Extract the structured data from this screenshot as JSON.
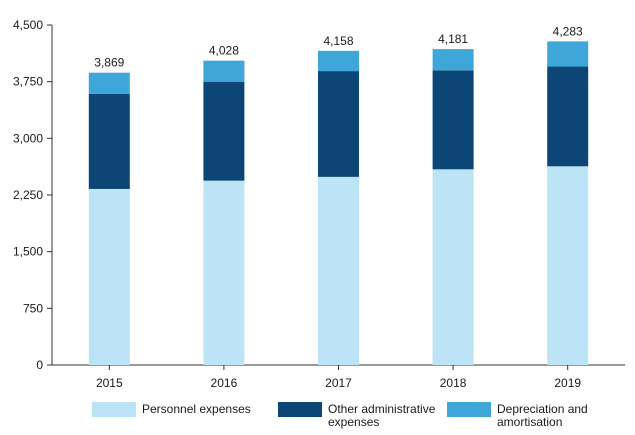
{
  "chart_data": {
    "type": "bar",
    "stacked": true,
    "categories": [
      "2015",
      "2016",
      "2017",
      "2018",
      "2019"
    ],
    "series": [
      {
        "name": "Personnel expenses",
        "values": [
          2330,
          2440,
          2490,
          2590,
          2630
        ],
        "color": "#bde3f6"
      },
      {
        "name": "Other administrative expenses",
        "values": [
          1260,
          1310,
          1400,
          1310,
          1320
        ],
        "color": "#0b4677"
      },
      {
        "name": "Depreciation and amortisation",
        "values": [
          279,
          278,
          268,
          281,
          333
        ],
        "color": "#3ea6d8"
      }
    ],
    "totals": [
      "3,869",
      "4,028",
      "4,158",
      "4,181",
      "4,283"
    ],
    "yticks": [
      "0",
      "750",
      "1,500",
      "2,250",
      "3,000",
      "3,750",
      "4,500"
    ],
    "ylim": [
      0,
      4500
    ],
    "grid": false,
    "legend_position": "bottom",
    "title": "",
    "xlabel": "",
    "ylabel": ""
  }
}
